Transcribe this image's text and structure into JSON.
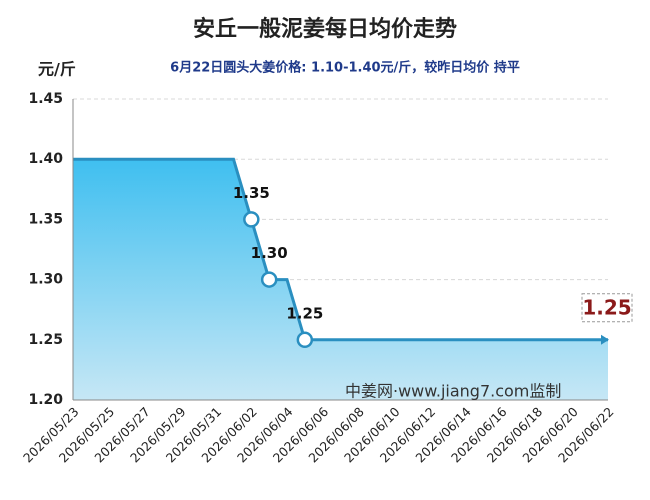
{
  "chart_data": {
    "type": "line",
    "title": "安丘一般泥姜每日均价走势",
    "subtitle": "6月22日圆头大姜价格: 1.10-1.40元/斤，较昨日均价 持平",
    "y_label": "元/斤",
    "watermark": "中姜网·www.jiang7.com监制",
    "x": [
      "2026/05/23",
      null,
      "2026/05/25",
      null,
      "2026/05/27",
      null,
      "2026/05/29",
      null,
      "2026/05/31",
      null,
      "2026/06/02",
      null,
      "2026/06/04",
      null,
      "2026/06/06",
      null,
      "2026/06/08",
      null,
      "2026/06/10",
      null,
      "2026/06/12",
      null,
      "2026/06/14",
      null,
      "2026/06/16",
      null,
      "2026/06/18",
      null,
      "2026/06/20",
      null,
      "2026/06/22"
    ],
    "series": [
      {
        "color": "#2a8fc0",
        "values": [
          1.4,
          1.4,
          1.4,
          1.4,
          1.4,
          1.4,
          1.4,
          1.4,
          1.4,
          1.4,
          1.35,
          1.3,
          1.3,
          1.25,
          1.25,
          1.25,
          1.25,
          1.25,
          1.25,
          1.25,
          1.25,
          1.25,
          1.25,
          1.25,
          1.25,
          1.25,
          1.25,
          1.25,
          1.25,
          1.25,
          1.25
        ],
        "value_labels": [
          null,
          null,
          null,
          null,
          null,
          null,
          null,
          null,
          null,
          null,
          "1.35",
          "1.30",
          null,
          "1.25",
          null,
          null,
          null,
          null,
          null,
          null,
          null,
          null,
          null,
          null,
          null,
          null,
          null,
          null,
          null,
          null,
          "1.25"
        ]
      }
    ],
    "ylim": [
      1.2,
      1.45
    ],
    "yticks": [
      {
        "value": 1.2,
        "label": "1.20"
      },
      1.25,
      {
        "value": 1.3,
        "label": "1.30"
      },
      1.35,
      {
        "value": 1.4,
        "label": "1.40"
      },
      1.45
    ],
    "grid": true
  }
}
